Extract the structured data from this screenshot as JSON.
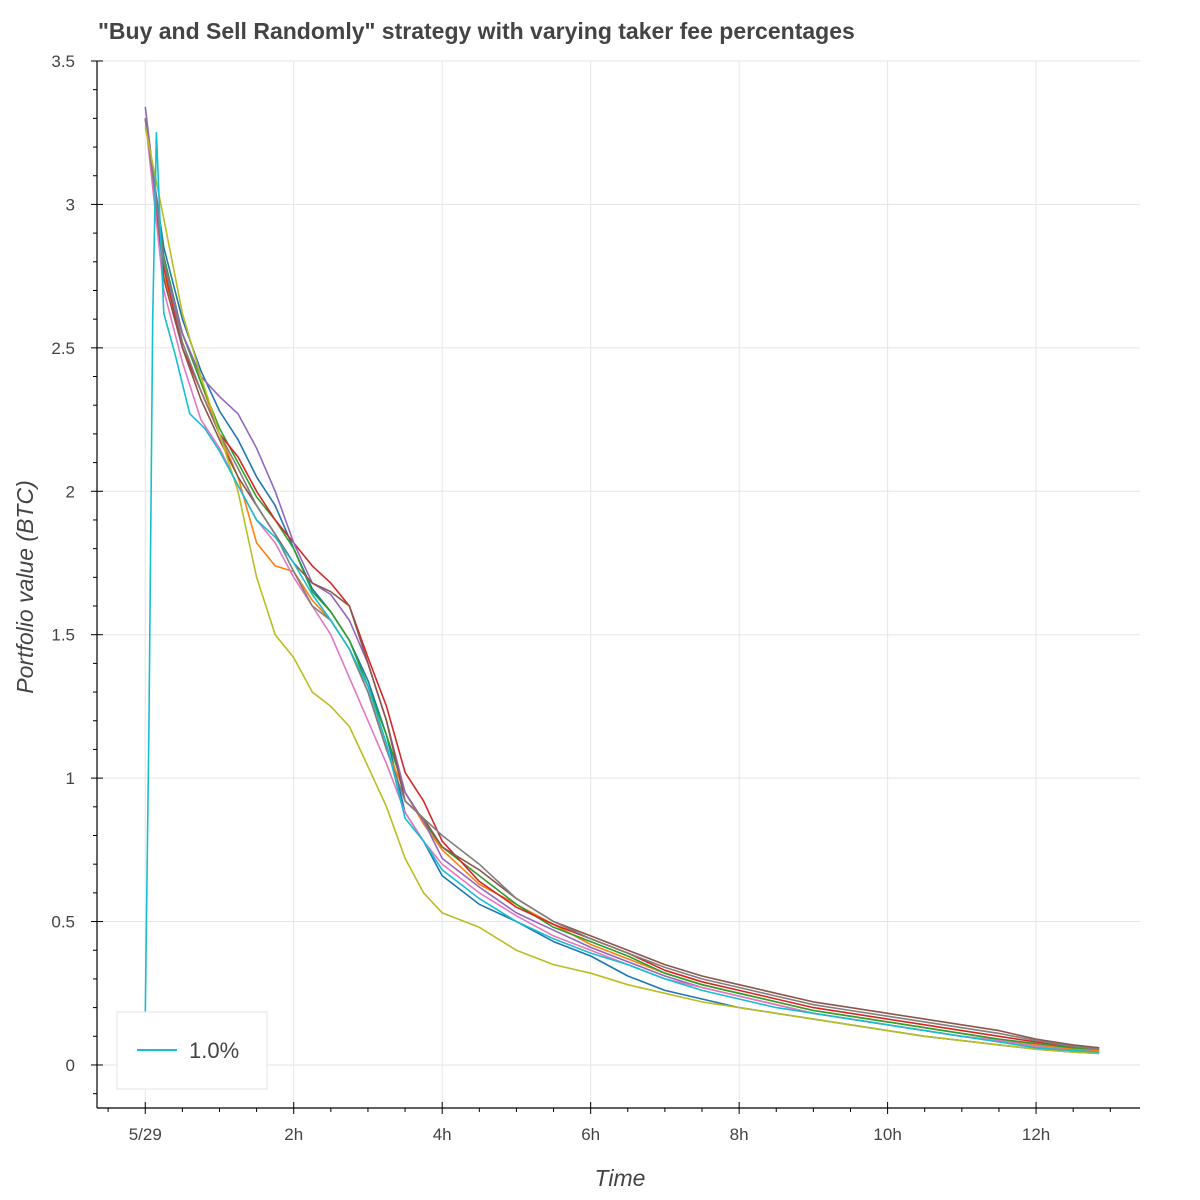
{
  "chart_data": {
    "type": "line",
    "title": "\"Buy and Sell Randomly\" strategy with varying taker fee percentages",
    "xlabel": "Time",
    "ylabel": "Portfolio value (BTC)",
    "x_unit": "hours",
    "xlim": [
      -0.65,
      13.4
    ],
    "ylim": [
      -0.15,
      3.5
    ],
    "x_ticks": [
      0,
      2,
      4,
      6,
      8,
      10,
      12
    ],
    "x_tick_labels": [
      "5/29",
      "2h",
      "4h",
      "6h",
      "8h",
      "10h",
      "12h"
    ],
    "y_ticks": [
      0,
      0.5,
      1,
      1.5,
      2,
      2.5,
      3,
      3.5
    ],
    "y_tick_labels": [
      "0",
      "0.5",
      "1",
      "1.5",
      "2",
      "2.5",
      "3",
      "3.5"
    ],
    "grid": true,
    "legend_position": "bottom-left",
    "legend": [
      {
        "label": "1.0%",
        "color": "#17becf"
      }
    ],
    "series": [
      {
        "color": "#1f77b4",
        "x": [
          0,
          0.25,
          0.5,
          0.75,
          1,
          1.25,
          1.5,
          1.75,
          2,
          2.25,
          2.5,
          2.75,
          3,
          3.25,
          3.5,
          3.75,
          4,
          4.5,
          5,
          5.5,
          6,
          6.5,
          7,
          7.5,
          8,
          8.5,
          9,
          9.5,
          10,
          10.5,
          11,
          11.5,
          12,
          12.5,
          12.85
        ],
        "y": [
          3.3,
          2.85,
          2.6,
          2.42,
          2.28,
          2.18,
          2.05,
          1.95,
          1.8,
          1.66,
          1.58,
          1.48,
          1.34,
          1.15,
          0.88,
          0.78,
          0.66,
          0.56,
          0.5,
          0.43,
          0.38,
          0.31,
          0.26,
          0.23,
          0.2,
          0.18,
          0.16,
          0.14,
          0.12,
          0.1,
          0.085,
          0.07,
          0.055,
          0.045,
          0.04
        ]
      },
      {
        "color": "#ff7f0e",
        "x": [
          0,
          0.25,
          0.5,
          0.75,
          1,
          1.25,
          1.5,
          1.75,
          2,
          2.25,
          2.5,
          2.75,
          3,
          3.25,
          3.5,
          3.75,
          4,
          4.5,
          5,
          5.5,
          6,
          6.5,
          7,
          7.5,
          8,
          8.5,
          9,
          9.5,
          10,
          10.5,
          11,
          11.5,
          12,
          12.5,
          12.85
        ],
        "y": [
          3.3,
          2.75,
          2.55,
          2.38,
          2.2,
          2.05,
          1.82,
          1.74,
          1.72,
          1.62,
          1.55,
          1.45,
          1.3,
          1.1,
          0.95,
          0.84,
          0.75,
          0.63,
          0.56,
          0.49,
          0.42,
          0.37,
          0.32,
          0.28,
          0.25,
          0.22,
          0.19,
          0.17,
          0.15,
          0.13,
          0.11,
          0.09,
          0.07,
          0.055,
          0.05
        ]
      },
      {
        "color": "#2ca02c",
        "x": [
          0,
          0.25,
          0.5,
          0.75,
          1,
          1.25,
          1.5,
          1.75,
          2,
          2.25,
          2.5,
          2.75,
          3,
          3.25,
          3.5,
          3.75,
          4,
          4.5,
          5,
          5.5,
          6,
          6.5,
          7,
          7.5,
          8,
          8.5,
          9,
          9.5,
          10,
          10.5,
          11,
          11.5,
          12,
          12.5,
          12.85
        ],
        "y": [
          3.3,
          2.82,
          2.55,
          2.38,
          2.22,
          2.1,
          1.98,
          1.9,
          1.8,
          1.65,
          1.58,
          1.48,
          1.32,
          1.15,
          0.95,
          0.85,
          0.76,
          0.66,
          0.56,
          0.48,
          0.43,
          0.38,
          0.32,
          0.28,
          0.25,
          0.22,
          0.19,
          0.17,
          0.15,
          0.13,
          0.11,
          0.09,
          0.075,
          0.06,
          0.055
        ]
      },
      {
        "color": "#d62728",
        "x": [
          0,
          0.25,
          0.5,
          0.75,
          1,
          1.25,
          1.5,
          1.75,
          2,
          2.25,
          2.5,
          2.75,
          3,
          3.25,
          3.5,
          3.75,
          4,
          4.5,
          5,
          5.5,
          6,
          6.5,
          7,
          7.5,
          8,
          8.5,
          9,
          9.5,
          10,
          10.5,
          11,
          11.5,
          12,
          12.5,
          12.85
        ],
        "y": [
          3.3,
          2.78,
          2.5,
          2.35,
          2.2,
          2.12,
          2.0,
          1.9,
          1.82,
          1.74,
          1.68,
          1.6,
          1.42,
          1.25,
          1.02,
          0.92,
          0.78,
          0.64,
          0.55,
          0.49,
          0.44,
          0.39,
          0.33,
          0.29,
          0.26,
          0.23,
          0.2,
          0.18,
          0.16,
          0.14,
          0.12,
          0.1,
          0.08,
          0.065,
          0.06
        ]
      },
      {
        "color": "#9467bd",
        "x": [
          0,
          0.25,
          0.5,
          0.75,
          1,
          1.25,
          1.5,
          1.75,
          2,
          2.25,
          2.5,
          2.75,
          3,
          3.25,
          3.5,
          3.75,
          4,
          4.5,
          5,
          5.5,
          6,
          6.5,
          7,
          7.5,
          8,
          8.5,
          9,
          9.5,
          10,
          10.5,
          11,
          11.5,
          12,
          12.5,
          12.85
        ],
        "y": [
          3.34,
          2.8,
          2.55,
          2.4,
          2.33,
          2.27,
          2.15,
          2.0,
          1.82,
          1.68,
          1.64,
          1.55,
          1.4,
          1.2,
          0.95,
          0.85,
          0.72,
          0.62,
          0.53,
          0.47,
          0.41,
          0.36,
          0.31,
          0.27,
          0.24,
          0.21,
          0.18,
          0.16,
          0.14,
          0.12,
          0.1,
          0.085,
          0.065,
          0.05,
          0.045
        ]
      },
      {
        "color": "#8c564b",
        "x": [
          0,
          0.25,
          0.5,
          0.75,
          1,
          1.25,
          1.5,
          1.75,
          2,
          2.25,
          2.5,
          2.75,
          3,
          3.25,
          3.5,
          3.75,
          4,
          4.5,
          5,
          5.5,
          6,
          6.5,
          7,
          7.5,
          8,
          8.5,
          9,
          9.5,
          10,
          10.5,
          11,
          11.5,
          12,
          12.5,
          12.85
        ],
        "y": [
          3.3,
          2.74,
          2.5,
          2.32,
          2.18,
          2.05,
          1.95,
          1.85,
          1.75,
          1.68,
          1.65,
          1.6,
          1.4,
          1.2,
          0.92,
          0.86,
          0.76,
          0.68,
          0.58,
          0.5,
          0.45,
          0.4,
          0.35,
          0.31,
          0.28,
          0.25,
          0.22,
          0.2,
          0.18,
          0.16,
          0.14,
          0.12,
          0.09,
          0.07,
          0.06
        ]
      },
      {
        "color": "#e377c2",
        "x": [
          0,
          0.25,
          0.5,
          0.75,
          1,
          1.25,
          1.5,
          1.75,
          2,
          2.25,
          2.5,
          2.75,
          3,
          3.25,
          3.5,
          3.75,
          4,
          4.5,
          5,
          5.5,
          6,
          6.5,
          7,
          7.5,
          8,
          8.5,
          9,
          9.5,
          10,
          10.5,
          11,
          11.5,
          12,
          12.5,
          12.85
        ],
        "y": [
          3.3,
          2.7,
          2.45,
          2.25,
          2.15,
          2.02,
          1.9,
          1.82,
          1.7,
          1.6,
          1.5,
          1.35,
          1.2,
          1.05,
          0.88,
          0.78,
          0.7,
          0.6,
          0.52,
          0.45,
          0.4,
          0.35,
          0.3,
          0.27,
          0.24,
          0.21,
          0.18,
          0.16,
          0.14,
          0.12,
          0.1,
          0.085,
          0.065,
          0.05,
          0.045
        ]
      },
      {
        "color": "#7f7f7f",
        "x": [
          0,
          0.25,
          0.5,
          0.75,
          1,
          1.25,
          1.5,
          1.75,
          2,
          2.25,
          2.5,
          2.75,
          3,
          3.25,
          3.5,
          3.75,
          4,
          4.5,
          5,
          5.5,
          6,
          6.5,
          7,
          7.5,
          8,
          8.5,
          9,
          9.5,
          10,
          10.5,
          11,
          11.5,
          12,
          12.5,
          12.85
        ],
        "y": [
          3.3,
          2.8,
          2.52,
          2.35,
          2.2,
          2.08,
          1.95,
          1.85,
          1.72,
          1.6,
          1.55,
          1.45,
          1.3,
          1.1,
          0.92,
          0.86,
          0.8,
          0.7,
          0.58,
          0.5,
          0.44,
          0.39,
          0.34,
          0.3,
          0.27,
          0.24,
          0.21,
          0.19,
          0.17,
          0.15,
          0.13,
          0.11,
          0.085,
          0.065,
          0.055
        ]
      },
      {
        "color": "#bcbd22",
        "x": [
          0,
          0.25,
          0.5,
          0.75,
          1,
          1.25,
          1.5,
          1.75,
          2,
          2.25,
          2.5,
          2.75,
          3,
          3.25,
          3.5,
          3.75,
          4,
          4.5,
          5,
          5.5,
          6,
          6.5,
          7,
          7.5,
          8,
          8.5,
          9,
          9.5,
          10,
          10.5,
          11,
          11.5,
          12,
          12.5,
          12.85
        ],
        "y": [
          3.27,
          2.95,
          2.62,
          2.4,
          2.2,
          2.0,
          1.7,
          1.5,
          1.42,
          1.3,
          1.25,
          1.18,
          1.04,
          0.9,
          0.72,
          0.6,
          0.53,
          0.48,
          0.4,
          0.35,
          0.32,
          0.28,
          0.25,
          0.22,
          0.2,
          0.18,
          0.16,
          0.14,
          0.12,
          0.1,
          0.085,
          0.07,
          0.055,
          0.045,
          0.04
        ]
      },
      {
        "color": "#17becf",
        "name": "1.0%",
        "x": [
          0,
          0.05,
          0.1,
          0.15,
          0.25,
          0.4,
          0.6,
          0.8,
          1,
          1.25,
          1.5,
          1.75,
          2,
          2.25,
          2.5,
          2.75,
          3,
          3.25,
          3.5,
          3.75,
          4,
          4.5,
          5,
          5.5,
          6,
          6.5,
          7,
          7.5,
          8,
          8.5,
          9,
          9.5,
          10,
          10.5,
          11,
          11.5,
          12,
          12.5,
          12.85
        ],
        "y": [
          0.18,
          1.2,
          2.6,
          3.25,
          2.62,
          2.48,
          2.27,
          2.22,
          2.14,
          2.02,
          1.9,
          1.84,
          1.75,
          1.64,
          1.55,
          1.45,
          1.32,
          1.12,
          0.86,
          0.78,
          0.68,
          0.58,
          0.5,
          0.44,
          0.39,
          0.35,
          0.3,
          0.26,
          0.23,
          0.2,
          0.18,
          0.16,
          0.14,
          0.12,
          0.1,
          0.08,
          0.06,
          0.05,
          0.045
        ]
      }
    ]
  }
}
